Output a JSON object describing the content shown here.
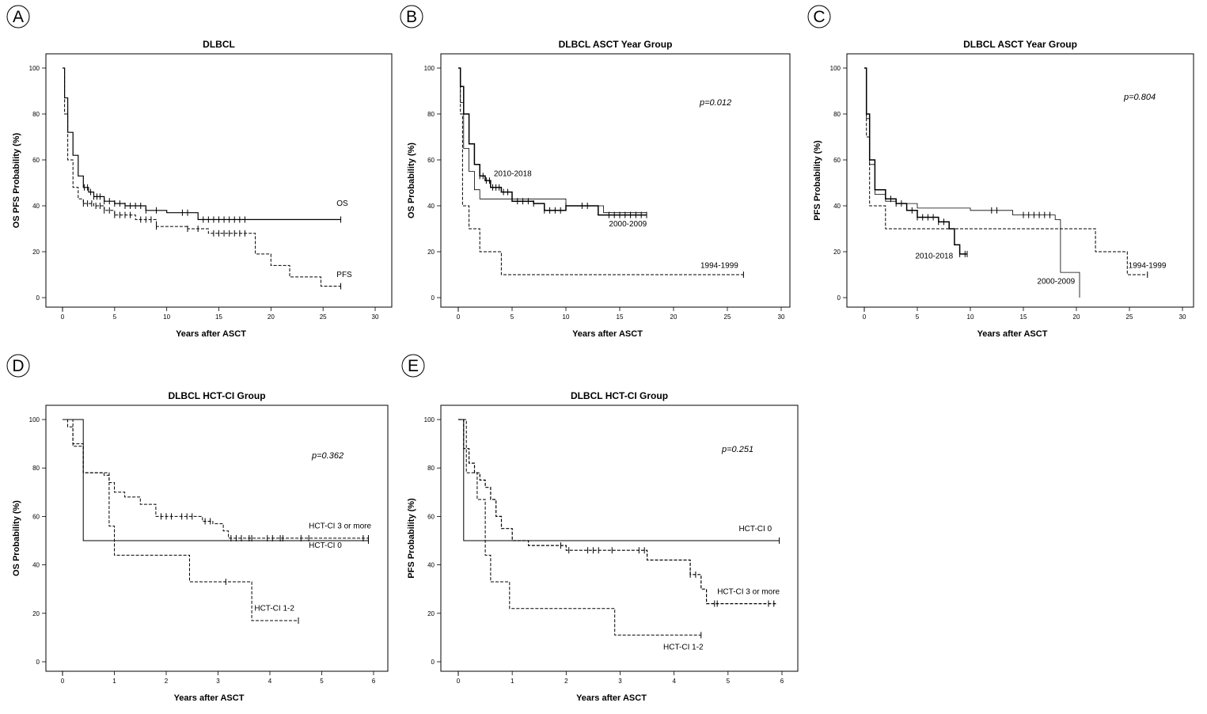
{
  "chart_data": [
    {
      "id": "A",
      "type": "line",
      "subtype": "kaplan-meier",
      "panel_label": "A",
      "title": "DLBCL",
      "xlabel": "Years after ASCT",
      "ylabel": "OS PFS Probability (%)",
      "xlim": [
        0,
        30
      ],
      "ylim": [
        0,
        100
      ],
      "xticks": [
        0,
        5,
        10,
        15,
        20,
        25,
        30
      ],
      "yticks": [
        0,
        20,
        40,
        60,
        80,
        100
      ],
      "pvalue": null,
      "series": [
        {
          "name": "OS",
          "style": "solid",
          "width": 1.2,
          "x": [
            0,
            0.2,
            0.5,
            1.0,
            1.5,
            2.0,
            2.5,
            3.0,
            4.0,
            5.0,
            6.0,
            8.0,
            10.0,
            13.0,
            26.7
          ],
          "y": [
            100,
            87,
            72,
            62,
            53,
            48,
            46,
            44,
            42,
            41,
            40,
            38,
            37,
            34,
            34
          ],
          "censor_x": [
            2.1,
            2.4,
            2.7,
            3.0,
            3.3,
            3.6,
            4.0,
            4.5,
            5.0,
            5.5,
            6.0,
            6.5,
            7.0,
            7.5,
            8.0,
            9.0,
            11.5,
            12.0,
            13.5,
            14.0,
            14.5,
            15.0,
            15.5,
            16.0,
            16.5,
            17.0,
            17.5,
            26.7
          ]
        },
        {
          "name": "PFS",
          "style": "dashed",
          "width": 1,
          "x": [
            0,
            0.2,
            0.5,
            1.0,
            1.5,
            2.0,
            3.0,
            4.0,
            5.0,
            7.0,
            9.0,
            12.0,
            14.0,
            18.0,
            18.5,
            20.0,
            21.8,
            24.8,
            26.7
          ],
          "y": [
            100,
            80,
            60,
            48,
            43,
            41,
            40,
            38,
            36,
            34,
            31,
            30,
            28,
            28,
            19,
            14,
            9,
            5,
            5
          ],
          "censor_x": [
            2.0,
            2.4,
            2.8,
            3.2,
            3.6,
            4.0,
            4.5,
            5.0,
            5.5,
            6.0,
            6.5,
            7.5,
            8.0,
            8.5,
            9.0,
            12.0,
            13.0,
            14.5,
            15.0,
            15.5,
            16.0,
            16.5,
            17.0,
            17.5,
            26.7
          ]
        }
      ],
      "annotations": [
        {
          "text": "OS",
          "x": 26.3,
          "y": 40
        },
        {
          "text": "PFS",
          "x": 26.3,
          "y": 9
        }
      ]
    },
    {
      "id": "B",
      "type": "line",
      "subtype": "kaplan-meier",
      "panel_label": "B",
      "title": "DLBCL ASCT Year Group",
      "xlabel": "Years after ASCT",
      "ylabel": "OS Probability (%)",
      "xlim": [
        0,
        30
      ],
      "ylim": [
        0,
        100
      ],
      "xticks": [
        0,
        5,
        10,
        15,
        20,
        25,
        30
      ],
      "yticks": [
        0,
        20,
        40,
        60,
        80,
        100
      ],
      "pvalue": "p=0.012",
      "series": [
        {
          "name": "2010-2018",
          "style": "solid",
          "width": 1.5,
          "x": [
            0,
            0.2,
            0.5,
            1.0,
            1.5,
            2.0,
            2.5,
            3.0,
            4.0,
            5.0,
            7.0,
            8.0,
            10.0,
            13.0,
            17.5
          ],
          "y": [
            100,
            92,
            80,
            67,
            58,
            53,
            51,
            48,
            46,
            42,
            41,
            38,
            40,
            36,
            36
          ],
          "censor_x": [
            2.0,
            2.3,
            2.6,
            2.9,
            3.2,
            3.5,
            3.8,
            4.2,
            4.6,
            5.5,
            6.0,
            6.5,
            7.0,
            8.0,
            8.5,
            9.0,
            9.5,
            10.0,
            11.5,
            12.0,
            14.0,
            14.5,
            15.0,
            15.5,
            16.0,
            16.5,
            17.0,
            17.5
          ]
        },
        {
          "name": "2000-2009",
          "style": "solid",
          "width": 0.8,
          "x": [
            0,
            0.2,
            0.5,
            1.0,
            1.5,
            2.0,
            10.0,
            13.5,
            17.5
          ],
          "y": [
            100,
            85,
            65,
            55,
            47,
            43,
            40,
            37,
            37
          ],
          "censor_x": []
        },
        {
          "name": "1994-1999",
          "style": "dashed",
          "width": 1,
          "x": [
            0,
            0.2,
            0.4,
            1.0,
            2.0,
            4.0,
            26.5
          ],
          "y": [
            100,
            80,
            40,
            30,
            20,
            10,
            10
          ],
          "censor_x": [
            26.5
          ]
        }
      ],
      "annotations": [
        {
          "text": "2010-2018",
          "x": 3.3,
          "y": 53
        },
        {
          "text": "2000-2009",
          "x": 14.0,
          "y": 31
        },
        {
          "text": "1994-1999",
          "x": 22.5,
          "y": 13
        }
      ]
    },
    {
      "id": "C",
      "type": "line",
      "subtype": "kaplan-meier",
      "panel_label": "C",
      "title": "DLBCL ASCT Year Group",
      "xlabel": "Years after ASCT",
      "ylabel": "PFS Probability (%)",
      "xlim": [
        0,
        30
      ],
      "ylim": [
        0,
        100
      ],
      "xticks": [
        0,
        5,
        10,
        15,
        20,
        25,
        30
      ],
      "yticks": [
        0,
        20,
        40,
        60,
        80,
        100
      ],
      "pvalue": "p=0.804",
      "series": [
        {
          "name": "2010-2018",
          "style": "solid",
          "width": 1.5,
          "x": [
            0,
            0.2,
            0.5,
            1.0,
            2.0,
            3.0,
            4.0,
            5.0,
            7.0,
            8.0,
            8.5,
            9.0,
            9.7
          ],
          "y": [
            100,
            80,
            60,
            47,
            43,
            41,
            38,
            35,
            33,
            30,
            23,
            19,
            19
          ],
          "censor_x": [
            2.5,
            3.0,
            3.5,
            4.5,
            5.0,
            5.5,
            6.0,
            6.5,
            7.0,
            7.5,
            9.0,
            9.5,
            9.7
          ]
        },
        {
          "name": "2000-2009",
          "style": "solid",
          "width": 0.8,
          "x": [
            0,
            0.2,
            0.5,
            1.0,
            2.0,
            3.0,
            5.0,
            10.0,
            14.0,
            18.0,
            18.5,
            20.0,
            20.3
          ],
          "y": [
            100,
            78,
            58,
            45,
            42,
            41,
            39,
            38,
            36,
            34,
            11,
            11,
            0
          ],
          "censor_x": [
            12.0,
            12.5,
            15.0,
            15.5,
            16.0,
            16.5,
            17.0,
            17.5
          ]
        },
        {
          "name": "1994-1999",
          "style": "dashed",
          "width": 1,
          "x": [
            0,
            0.2,
            0.5,
            2.0,
            21.8,
            24.8,
            26.7
          ],
          "y": [
            100,
            70,
            40,
            30,
            20,
            10,
            10
          ],
          "censor_x": [
            26.7
          ]
        }
      ],
      "annotations": [
        {
          "text": "2010-2018",
          "x": 4.8,
          "y": 17
        },
        {
          "text": "2000-2009",
          "x": 16.3,
          "y": 6
        },
        {
          "text": "1994-1999",
          "x": 24.9,
          "y": 13
        }
      ]
    },
    {
      "id": "D",
      "type": "line",
      "subtype": "kaplan-meier",
      "panel_label": "D",
      "title": "DLBCL HCT-CI Group",
      "xlabel": "Years after ASCT",
      "ylabel": "OS Probability (%)",
      "xlim": [
        0,
        6
      ],
      "ylim": [
        0,
        100
      ],
      "xticks": [
        0,
        1,
        2,
        3,
        4,
        5,
        6
      ],
      "yticks": [
        0,
        20,
        40,
        60,
        80,
        100
      ],
      "pvalue": "p=0.362",
      "series": [
        {
          "name": "HCT-CI 0",
          "style": "solid",
          "width": 1,
          "x": [
            0,
            0.4,
            5.9
          ],
          "y": [
            100,
            50,
            50
          ],
          "censor_x": [
            5.9
          ]
        },
        {
          "name": "HCT-CI 1-2",
          "style": "dashed",
          "width": 1,
          "x": [
            0,
            0.2,
            0.4,
            0.9,
            1.0,
            2.45,
            3.65,
            4.55
          ],
          "y": [
            100,
            89,
            78,
            56,
            44,
            33,
            17,
            17
          ],
          "censor_x": [
            3.15,
            4.55
          ]
        },
        {
          "name": "HCT-CI 3 or more",
          "style": "dashed",
          "width": 1,
          "x": [
            0,
            0.1,
            0.2,
            0.4,
            0.8,
            0.9,
            1.0,
            1.2,
            1.5,
            1.8,
            2.5,
            2.7,
            2.9,
            3.1,
            3.2,
            5.9
          ],
          "y": [
            100,
            97,
            90,
            78,
            77,
            74,
            70,
            68,
            65,
            60,
            60,
            58,
            57,
            54,
            51,
            51
          ],
          "censor_x": [
            1.9,
            2.0,
            2.1,
            2.3,
            2.4,
            2.5,
            2.75,
            2.85,
            3.25,
            3.35,
            3.45,
            3.6,
            3.65,
            3.95,
            4.05,
            4.2,
            4.25,
            4.6,
            4.75,
            5.8,
            5.9
          ]
        }
      ],
      "annotations": [
        {
          "text": "HCT-CI 3 or more",
          "x": 4.75,
          "y": 55
        },
        {
          "text": "HCT-CI 0",
          "x": 4.75,
          "y": 47
        },
        {
          "text": "HCT-CI 1-2",
          "x": 3.7,
          "y": 21
        }
      ]
    },
    {
      "id": "E",
      "type": "line",
      "subtype": "kaplan-meier",
      "panel_label": "E",
      "title": "DLBCL HCT-CI Group",
      "xlabel": "Years after ASCT",
      "ylabel": "PFS Probability (%)",
      "xlim": [
        0,
        6
      ],
      "ylim": [
        0,
        100
      ],
      "xticks": [
        0,
        1,
        2,
        3,
        4,
        5,
        6
      ],
      "yticks": [
        0,
        20,
        40,
        60,
        80,
        100
      ],
      "pvalue": "p=0.251",
      "series": [
        {
          "name": "HCT-CI 0",
          "style": "solid",
          "width": 1,
          "x": [
            0,
            0.1,
            5.95
          ],
          "y": [
            100,
            50,
            50
          ],
          "censor_x": [
            5.95
          ]
        },
        {
          "name": "HCT-CI 1-2",
          "style": "dashed",
          "width": 1,
          "x": [
            0,
            0.15,
            0.35,
            0.5,
            0.6,
            0.95,
            2.9,
            4.5
          ],
          "y": [
            100,
            78,
            67,
            44,
            33,
            22,
            11,
            11
          ],
          "censor_x": [
            4.5
          ]
        },
        {
          "name": "HCT-CI 3 or more",
          "style": "dashed",
          "width": 1.2,
          "x": [
            0,
            0.1,
            0.2,
            0.3,
            0.4,
            0.5,
            0.6,
            0.7,
            0.8,
            1.0,
            1.3,
            2.0,
            3.5,
            4.3,
            4.5,
            4.6,
            5.9
          ],
          "y": [
            100,
            88,
            82,
            78,
            75,
            72,
            67,
            60,
            55,
            50,
            48,
            46,
            42,
            36,
            30,
            24,
            24
          ],
          "censor_x": [
            1.9,
            2.05,
            2.4,
            2.5,
            2.6,
            2.85,
            3.35,
            3.45,
            4.3,
            4.4,
            4.75,
            4.8,
            5.75,
            5.85
          ]
        }
      ],
      "annotations": [
        {
          "text": "HCT-CI 0",
          "x": 5.2,
          "y": 54
        },
        {
          "text": "HCT-CI 3 or more",
          "x": 4.8,
          "y": 28
        },
        {
          "text": "HCT-CI 1-2",
          "x": 3.8,
          "y": 5
        }
      ]
    }
  ]
}
